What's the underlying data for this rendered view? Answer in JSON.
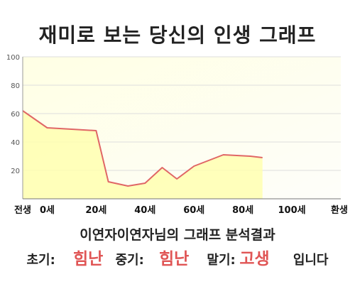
{
  "title": "재미로 보는 당신의 인생 그래프",
  "chart_data": {
    "type": "area",
    "title": "재미로 보는 당신의 인생 그래프",
    "xlabel": "",
    "ylabel": "",
    "x": [
      -10,
      0,
      10,
      20,
      25,
      33,
      40,
      47,
      53,
      60,
      72,
      83,
      88
    ],
    "values": [
      62,
      50,
      49,
      48,
      12,
      9,
      11,
      22,
      14,
      23,
      31,
      30,
      29
    ],
    "ylim": [
      0,
      100
    ],
    "yticks": [
      20,
      40,
      60,
      80,
      100
    ],
    "xtick_labels": [
      {
        "x": -10,
        "label": "전생"
      },
      {
        "x": 0,
        "label": "0세"
      },
      {
        "x": 20,
        "label": "20세"
      },
      {
        "x": 40,
        "label": "40세"
      },
      {
        "x": 60,
        "label": "60세"
      },
      {
        "x": 80,
        "label": "80세"
      },
      {
        "x": 100,
        "label": "100세"
      },
      {
        "x": 120,
        "label": "환생"
      }
    ],
    "grid": true,
    "colors": {
      "line": "#e06666",
      "fill": "#ffffb0",
      "plot_bg": "#fffff0",
      "grid": "#dddddd"
    }
  },
  "result": {
    "heading": "이연자이연자님의 그래프 분석결과",
    "early_label": "초기:",
    "early_value": "힘난",
    "mid_label": "중기:",
    "mid_value": "힘난",
    "late_label": "말기:",
    "late_value": "고생",
    "ending": "입니다",
    "value_color": "#e05555"
  }
}
